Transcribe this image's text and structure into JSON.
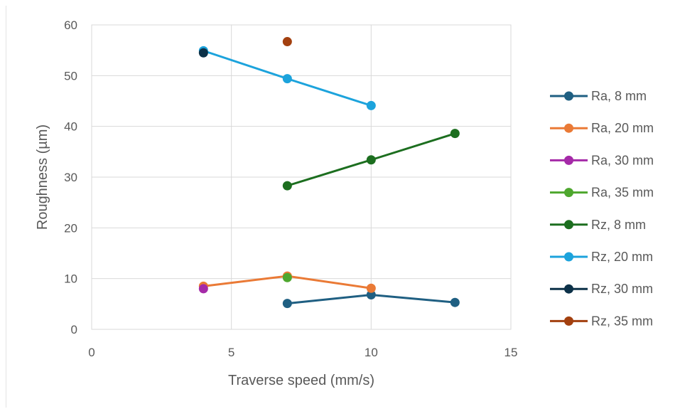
{
  "chart_data": {
    "type": "scatter",
    "title": "",
    "xlabel": "Traverse speed (mm/s)",
    "ylabel": "Roughness (µm)",
    "xlim": [
      0,
      15
    ],
    "ylim": [
      0,
      60
    ],
    "xticks": [
      0,
      5,
      10,
      15
    ],
    "yticks": [
      0,
      10,
      20,
      30,
      40,
      50,
      60
    ],
    "grid": true,
    "legend_position": "right",
    "series": [
      {
        "name": "Ra, 8 mm",
        "color": "#1f5f82",
        "x": [
          7,
          10,
          13
        ],
        "y": [
          5.1,
          6.8,
          5.3
        ]
      },
      {
        "name": "Ra, 20 mm",
        "color": "#ea7a36",
        "x": [
          4,
          7,
          10
        ],
        "y": [
          8.5,
          10.5,
          8.1
        ]
      },
      {
        "name": "Ra, 30 mm",
        "color": "#a52aa8",
        "x": [
          4
        ],
        "y": [
          8.0
        ]
      },
      {
        "name": "Ra, 35 mm",
        "color": "#4ea72e",
        "x": [
          7
        ],
        "y": [
          10.2
        ]
      },
      {
        "name": "Rz, 8 mm",
        "color": "#1c6e1f",
        "x": [
          7,
          10,
          13
        ],
        "y": [
          28.3,
          33.4,
          38.6
        ]
      },
      {
        "name": "Rz, 20 mm",
        "color": "#1ca3dc",
        "x": [
          4,
          7,
          10
        ],
        "y": [
          54.9,
          49.4,
          44.1
        ]
      },
      {
        "name": "Rz, 30 mm",
        "color": "#0c3148",
        "x": [
          4
        ],
        "y": [
          54.5
        ]
      },
      {
        "name": "Rz, 35 mm",
        "color": "#a3400f",
        "x": [
          7
        ],
        "y": [
          56.7
        ]
      }
    ]
  }
}
